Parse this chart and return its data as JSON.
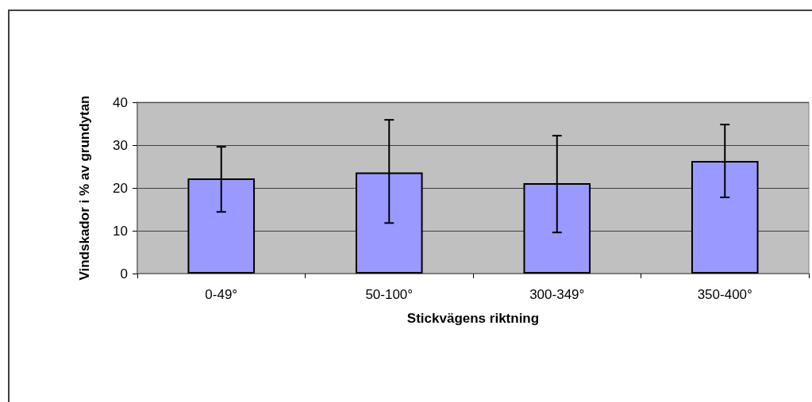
{
  "chart_data": {
    "type": "bar",
    "categories": [
      "0-49°",
      "50-100°",
      "300-349°",
      "350-400°"
    ],
    "values": [
      22.2,
      23.6,
      21.1,
      26.3
    ],
    "errors": [
      [
        14.4,
        29.6
      ],
      [
        11.8,
        35.9
      ],
      [
        9.6,
        32.2
      ],
      [
        17.8,
        34.8
      ]
    ],
    "color": "#9999ff",
    "xlabel": "Stickvägens riktning",
    "ylabel": "Vindskador i % av grundytan",
    "ylim": [
      0,
      40
    ],
    "yticks": [
      0,
      10,
      20,
      30,
      40
    ],
    "grid": "y"
  }
}
